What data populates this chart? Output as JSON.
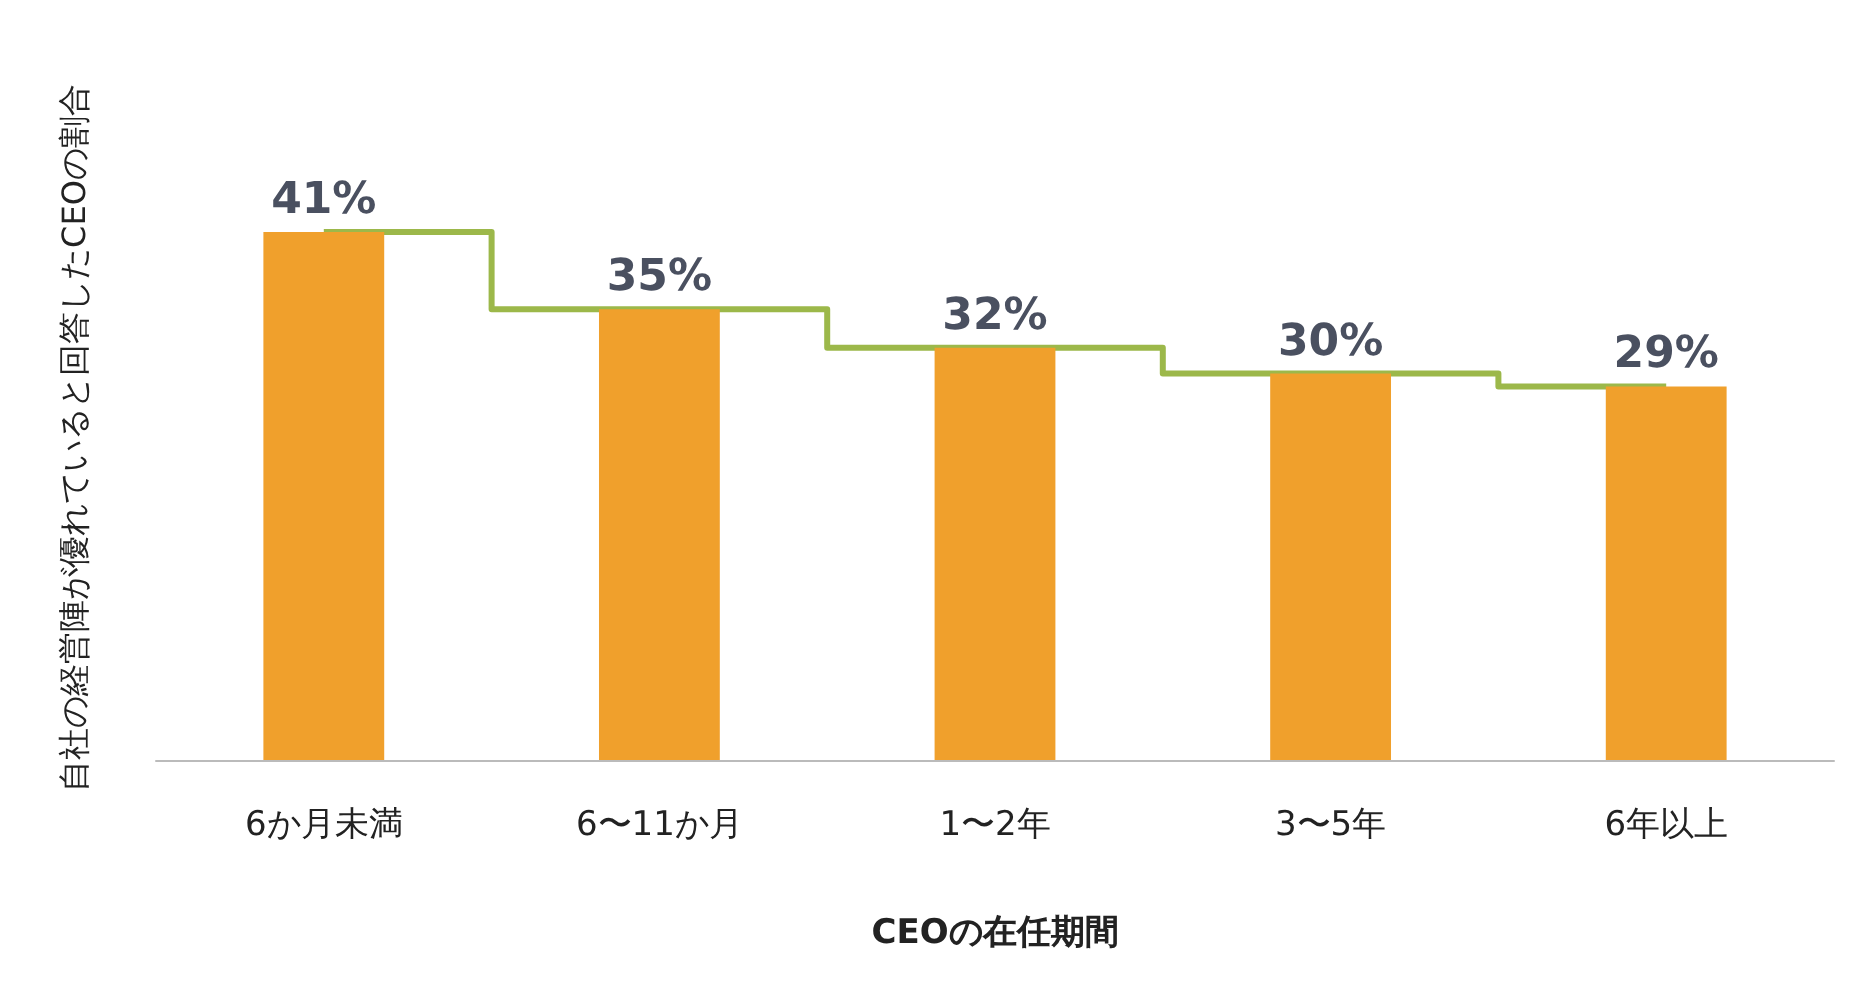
{
  "chart_data": {
    "type": "bar",
    "ylabel": "自社の経営陣が優れていると回答したCEOの割合",
    "xlabel": "CEOの在任期間",
    "categories": [
      "6か月未満",
      "6〜11か月",
      "1〜2年",
      "3〜5年",
      "6年以上"
    ],
    "series": [
      {
        "color": "#f0a02c",
        "values": [
          41,
          35,
          32,
          30,
          29
        ],
        "value_labels": [
          "41%",
          "35%",
          "32%",
          "30%",
          "29%"
        ]
      },
      {
        "type": "step",
        "color": "#9cb84a",
        "values": [
          41,
          35,
          32,
          30,
          29
        ]
      }
    ],
    "grid": false
  }
}
